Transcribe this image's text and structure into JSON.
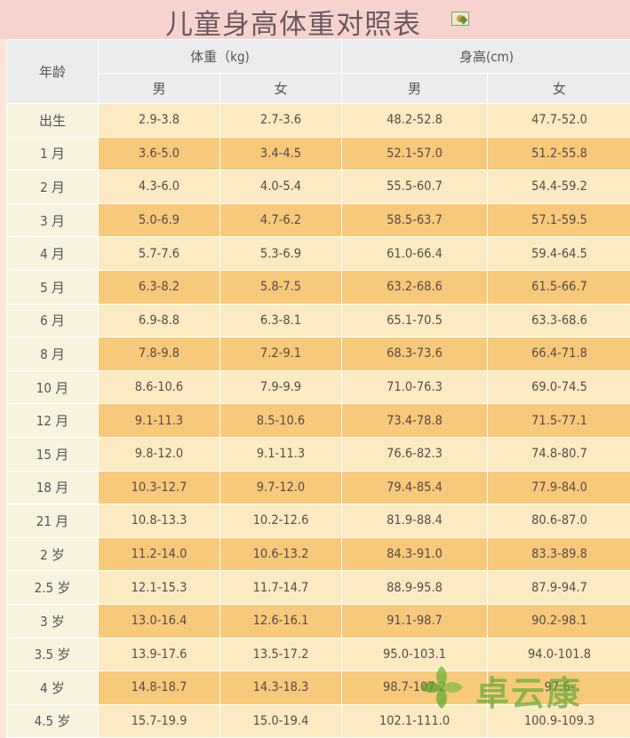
{
  "title": "儿童身高体重对照表",
  "header": {
    "age": "年龄",
    "weight": "体重（kg)",
    "height": "身高(cm)",
    "male": "男",
    "female": "女"
  },
  "rows": [
    {
      "age": "出生",
      "w_m": "2.9-3.8",
      "w_f": "2.7-3.6",
      "h_m": "48.2-52.8",
      "h_f": "47.7-52.0"
    },
    {
      "age": "1 月",
      "w_m": "3.6-5.0",
      "w_f": "3.4-4.5",
      "h_m": "52.1-57.0",
      "h_f": "51.2-55.8"
    },
    {
      "age": "2 月",
      "w_m": "4.3-6.0",
      "w_f": "4.0-5.4",
      "h_m": "55.5-60.7",
      "h_f": "54.4-59.2"
    },
    {
      "age": "3 月",
      "w_m": "5.0-6.9",
      "w_f": "4.7-6.2",
      "h_m": "58.5-63.7",
      "h_f": "57.1-59.5"
    },
    {
      "age": "4 月",
      "w_m": "5.7-7.6",
      "w_f": "5.3-6.9",
      "h_m": "61.0-66.4",
      "h_f": "59.4-64.5"
    },
    {
      "age": "5 月",
      "w_m": "6.3-8.2",
      "w_f": "5.8-7.5",
      "h_m": "63.2-68.6",
      "h_f": "61.5-66.7"
    },
    {
      "age": "6 月",
      "w_m": "6.9-8.8",
      "w_f": "6.3-8.1",
      "h_m": "65.1-70.5",
      "h_f": "63.3-68.6"
    },
    {
      "age": "8 月",
      "w_m": "7.8-9.8",
      "w_f": "7.2-9.1",
      "h_m": "68.3-73.6",
      "h_f": "66.4-71.8"
    },
    {
      "age": "10 月",
      "w_m": "8.6-10.6",
      "w_f": "7.9-9.9",
      "h_m": "71.0-76.3",
      "h_f": "69.0-74.5"
    },
    {
      "age": "12 月",
      "w_m": "9.1-11.3",
      "w_f": "8.5-10.6",
      "h_m": "73.4-78.8",
      "h_f": "71.5-77.1"
    },
    {
      "age": "15 月",
      "w_m": "9.8-12.0",
      "w_f": "9.1-11.3",
      "h_m": "76.6-82.3",
      "h_f": "74.8-80.7"
    },
    {
      "age": "18 月",
      "w_m": "10.3-12.7",
      "w_f": "9.7-12.0",
      "h_m": "79.4-85.4",
      "h_f": "77.9-84.0"
    },
    {
      "age": "21 月",
      "w_m": "10.8-13.3",
      "w_f": "10.2-12.6",
      "h_m": "81.9-88.4",
      "h_f": "80.6-87.0"
    },
    {
      "age": "2 岁",
      "w_m": "11.2-14.0",
      "w_f": "10.6-13.2",
      "h_m": "84.3-91.0",
      "h_f": "83.3-89.8"
    },
    {
      "age": "2.5 岁",
      "w_m": "12.1-15.3",
      "w_f": "11.7-14.7",
      "h_m": "88.9-95.8",
      "h_f": "87.9-94.7"
    },
    {
      "age": "3 岁",
      "w_m": "13.0-16.4",
      "w_f": "12.6-16.1",
      "h_m": "91.1-98.7",
      "h_f": "90.2-98.1"
    },
    {
      "age": "3.5 岁",
      "w_m": "13.9-17.6",
      "w_f": "13.5-17.2",
      "h_m": "95.0-103.1",
      "h_f": "94.0-101.8"
    },
    {
      "age": "4 岁",
      "w_m": "14.8-18.7",
      "w_f": "14.3-18.3",
      "h_m": "98.7-107.2",
      "h_f": "97.6-"
    },
    {
      "age": "4.5 岁",
      "w_m": "15.7-19.9",
      "w_f": "15.0-19.4",
      "h_m": "102.1-111.0",
      "h_f": "100.9-109.3"
    }
  ],
  "watermark": {
    "text": "卓云康",
    "icon": "leaf-logo-icon"
  },
  "title_icon": "image-icon",
  "colors": {
    "title_bg": "#f6d3cf",
    "header_bg": "#ececec",
    "row_light": "#fcebc2",
    "row_dark": "#f7c97a",
    "age_bg": "#f8f3df",
    "watermark": "#64aa3c"
  }
}
